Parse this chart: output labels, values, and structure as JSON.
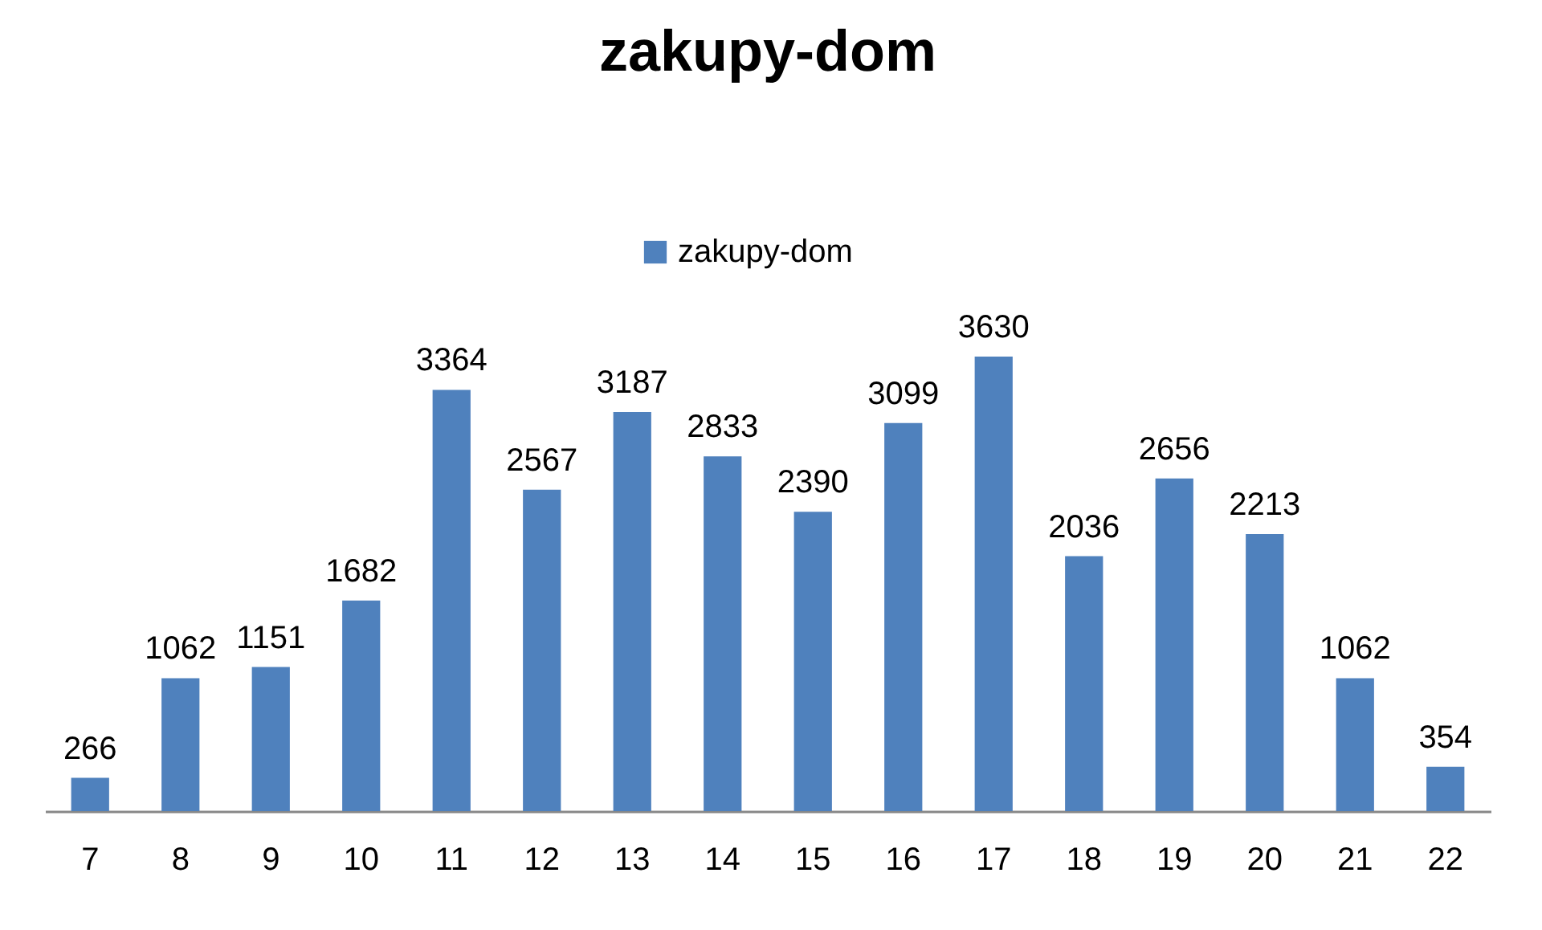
{
  "chart_data": {
    "type": "bar",
    "title": "zakupy-dom",
    "categories": [
      "7",
      "8",
      "9",
      "10",
      "11",
      "12",
      "13",
      "14",
      "15",
      "16",
      "17",
      "18",
      "19",
      "20",
      "21",
      "22"
    ],
    "series": [
      {
        "name": "zakupy-dom",
        "color": "#4f81bd",
        "values": [
          266,
          1062,
          1151,
          1682,
          3364,
          2567,
          3187,
          2833,
          2390,
          3099,
          3630,
          2036,
          2656,
          2213,
          1062,
          354
        ]
      }
    ],
    "data_labels": true,
    "legend": "top"
  }
}
